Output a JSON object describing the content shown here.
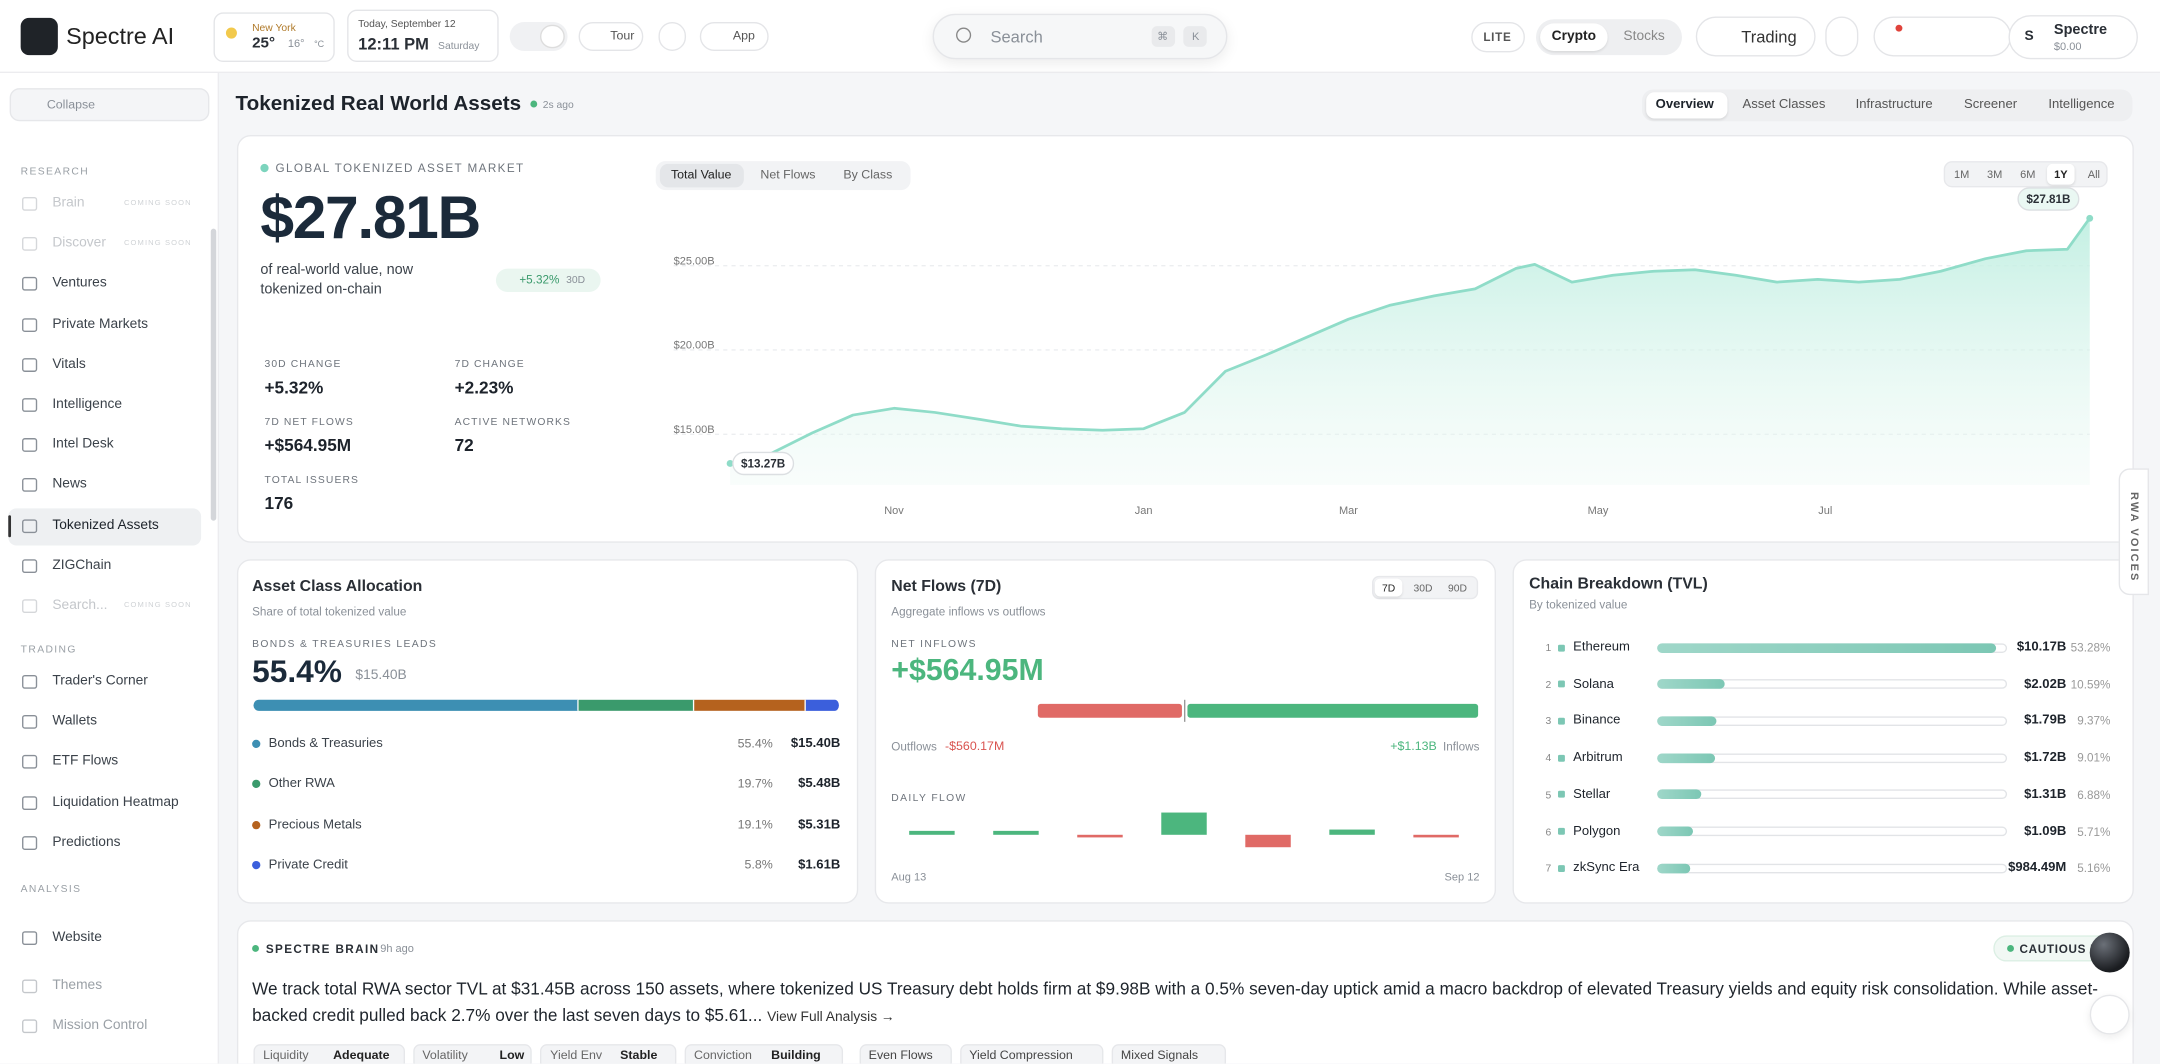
{
  "header": {
    "brand": "Spectre AI",
    "weather": {
      "city": "New York",
      "temp": "25°",
      "low": "16°",
      "unit": "°C"
    },
    "date": {
      "day": "Today, September 12",
      "time": "12:11 PM",
      "weekday": "Saturday"
    },
    "buttons": [
      "Tour",
      "App"
    ],
    "search": {
      "placeholder": "Search",
      "keys": [
        "⌘",
        "K"
      ]
    },
    "mode": "LITE",
    "markets": [
      {
        "label": "Crypto",
        "active": true
      },
      {
        "label": "Stocks",
        "active": false
      }
    ],
    "trading": "Trading",
    "user": {
      "initial": "S",
      "name": "Spectre",
      "balance": "$0.00"
    }
  },
  "sidebar": {
    "collapse": "Collapse",
    "sections": [
      {
        "title": "RESEARCH",
        "items": [
          {
            "label": "Brain",
            "badge": "COMING SOON",
            "disabled": true
          },
          {
            "label": "Discover",
            "badge": "COMING SOON",
            "disabled": true
          },
          {
            "label": "Ventures"
          },
          {
            "label": "Private Markets"
          },
          {
            "label": "Vitals"
          },
          {
            "label": "Intelligence"
          },
          {
            "label": "Intel Desk"
          },
          {
            "label": "News"
          },
          {
            "label": "Tokenized Assets",
            "active": true
          },
          {
            "label": "ZIGChain"
          },
          {
            "label": "Search...",
            "badge": "COMING SOON",
            "disabled": true
          }
        ]
      },
      {
        "title": "TRADING",
        "items": [
          {
            "label": "Trader's Corner"
          },
          {
            "label": "Wallets"
          },
          {
            "label": "ETF Flows"
          },
          {
            "label": "Liquidation Heatmap"
          },
          {
            "label": "Predictions"
          }
        ]
      },
      {
        "title": "ANALYSIS",
        "items": [
          {
            "label": "Website"
          }
        ]
      }
    ],
    "footer": [
      "Themes",
      "Mission Control"
    ]
  },
  "page": {
    "title": "Tokenized Real World Assets",
    "updated": "2s ago",
    "tabs": [
      {
        "label": "Overview",
        "active": true
      },
      {
        "label": "Asset Classes"
      },
      {
        "label": "Infrastructure"
      },
      {
        "label": "Screener"
      },
      {
        "label": "Intelligence"
      }
    ]
  },
  "hero": {
    "eyebrow": "GLOBAL TOKENIZED ASSET MARKET",
    "value": "$27.81B",
    "description": "of real-world value, now tokenized on-chain",
    "badge": {
      "change": "+5.32%",
      "period": "30D"
    },
    "stats": [
      {
        "label": "30D CHANGE",
        "value": "+5.32%"
      },
      {
        "label": "7D CHANGE",
        "value": "+2.23%"
      },
      {
        "label": "7D NET FLOWS",
        "value": "+$564.95M"
      },
      {
        "label": "ACTIVE NETWORKS",
        "value": "72"
      },
      {
        "label": "TOTAL ISSUERS",
        "value": "176"
      }
    ],
    "views": [
      {
        "label": "Total Value",
        "active": true
      },
      {
        "label": "Net Flows"
      },
      {
        "label": "By Class"
      }
    ],
    "ranges": [
      {
        "label": "1M"
      },
      {
        "label": "3M"
      },
      {
        "label": "6M"
      },
      {
        "label": "1Y",
        "active": true
      },
      {
        "label": "All"
      }
    ]
  },
  "chart_data": {
    "type": "area",
    "color": "#8fdcc8",
    "x": [
      0,
      11,
      22,
      33,
      44,
      55,
      67,
      78,
      89,
      100,
      111,
      122,
      133,
      144,
      155,
      166,
      177,
      189,
      200,
      211,
      216,
      226,
      237,
      248,
      259,
      270,
      281,
      292,
      303,
      314,
      325,
      337,
      348,
      359,
      365
    ],
    "values": [
      13.27,
      13.86,
      15.08,
      16.14,
      16.54,
      16.3,
      15.89,
      15.49,
      15.33,
      15.24,
      15.33,
      16.3,
      18.74,
      19.72,
      20.77,
      21.83,
      22.64,
      23.21,
      23.62,
      24.84,
      25.08,
      24.02,
      24.43,
      24.67,
      24.76,
      24.43,
      24.02,
      24.19,
      24.02,
      24.19,
      24.67,
      25.41,
      25.89,
      25.98,
      27.81
    ],
    "value_labels": [
      "$13.27B",
      null,
      null,
      null,
      null,
      null,
      null,
      null,
      null,
      null,
      null,
      null,
      null,
      null,
      null,
      null,
      null,
      null,
      null,
      null,
      null,
      null,
      null,
      null,
      null,
      null,
      null,
      null,
      null,
      null,
      null,
      null,
      null,
      null,
      "$27.81B"
    ],
    "xlim": [
      0,
      365
    ],
    "xticks": [
      {
        "value": 44,
        "label": "Nov"
      },
      {
        "value": 111,
        "label": "Jan"
      },
      {
        "value": 166,
        "label": "Mar"
      },
      {
        "value": 233,
        "label": "May"
      },
      {
        "value": 294,
        "label": "Jul"
      }
    ],
    "ylim": [
      12,
      28.5
    ],
    "yticks": [
      {
        "value": 15,
        "label": "$15.00B"
      },
      {
        "value": 20,
        "label": "$20.00B"
      },
      {
        "value": 25,
        "label": "$25.00B"
      }
    ],
    "grid": true
  },
  "allocation": {
    "title": "Asset Class Allocation",
    "subtitle": "Share of total tokenized value",
    "eyebrow": "BONDS & TREASURIES LEADS",
    "headline": "55.4%",
    "headline_amount": "$15.40B",
    "items": [
      {
        "name": "Bonds & Treasuries",
        "value": 55.4,
        "label": "55.4%",
        "amount": "$15.40B",
        "color": "#3d8fb3"
      },
      {
        "name": "Other RWA",
        "value": 19.7,
        "label": "19.7%",
        "amount": "$5.48B",
        "color": "#3a9a6c"
      },
      {
        "name": "Precious Metals",
        "value": 19.1,
        "label": "19.1%",
        "amount": "$5.31B",
        "color": "#b5621e"
      },
      {
        "name": "Private Credit",
        "value": 5.8,
        "label": "5.8%",
        "amount": "$1.61B",
        "color": "#3b5fdc"
      }
    ]
  },
  "net_flows": {
    "title": "Net Flows (7D)",
    "subtitle": "Aggregate inflows vs outflows",
    "ranges": [
      {
        "label": "7D",
        "active": true
      },
      {
        "label": "30D"
      },
      {
        "label": "90D"
      }
    ],
    "eyebrow": "NET INFLOWS",
    "value": "+$564.95M",
    "outflows": {
      "name": "Outflows",
      "value": -560.17,
      "label": "-$560.17M",
      "color": "#e06a66"
    },
    "inflows": {
      "name": "Inflows",
      "value": 1130,
      "label": "+$1.13B",
      "color": "#4cb67e"
    },
    "daily": {
      "title": "DAILY FLOW",
      "values": [
        30,
        30,
        -20,
        170,
        -95,
        40,
        -20
      ],
      "start": "Aug 13",
      "end": "Sep 12"
    }
  },
  "chains": {
    "title": "Chain Breakdown (TVL)",
    "subtitle": "By tokenized value",
    "color": "#7cc7b4",
    "rows": [
      {
        "rank": 1,
        "name": "Ethereum",
        "amount": "$10.17B",
        "value": 53.28,
        "label": "53.28%"
      },
      {
        "rank": 2,
        "name": "Solana",
        "amount": "$2.02B",
        "value": 10.59,
        "label": "10.59%"
      },
      {
        "rank": 3,
        "name": "Binance",
        "amount": "$1.79B",
        "value": 9.37,
        "label": "9.37%"
      },
      {
        "rank": 4,
        "name": "Arbitrum",
        "amount": "$1.72B",
        "value": 9.01,
        "label": "9.01%"
      },
      {
        "rank": 5,
        "name": "Stellar",
        "amount": "$1.31B",
        "value": 6.88,
        "label": "6.88%"
      },
      {
        "rank": 6,
        "name": "Polygon",
        "amount": "$1.09B",
        "value": 5.71,
        "label": "5.71%"
      },
      {
        "rank": 7,
        "name": "zkSync Era",
        "amount": "$984.49M",
        "value": 5.16,
        "label": "5.16%"
      }
    ]
  },
  "brain": {
    "title": "SPECTRE BRAIN",
    "time": "9h ago",
    "stance": "CAUTIOUS B",
    "text": "We track total RWA sector TVL at $31.45B across 150 assets, where tokenized US Treasury debt holds firm at $9.98B with a 0.5% seven-day uptick amid a macro backdrop of elevated Treasury yields and equity risk consolidation. While asset-backed credit pulled back 2.7% over the last seven days to $5.61...",
    "link": "View Full Analysis →",
    "metrics": [
      {
        "key": "Liquidity",
        "value": "Adequate"
      },
      {
        "key": "Volatility",
        "value": "Low"
      },
      {
        "key": "Yield Env",
        "value": "Stable"
      },
      {
        "key": "Conviction",
        "value": "Building"
      }
    ],
    "tags": [
      "Even Flows",
      "Yield Compression",
      "Mixed Signals"
    ]
  },
  "side_tab": "RWA VOICES"
}
